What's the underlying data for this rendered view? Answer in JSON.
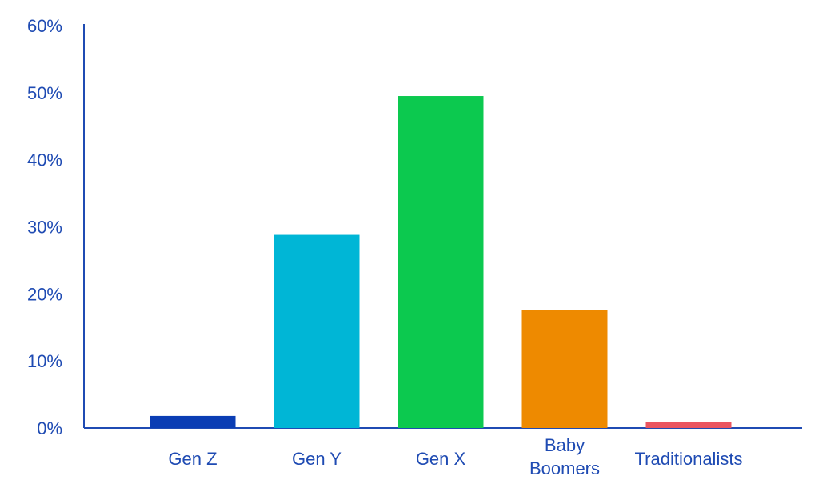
{
  "chart_data": {
    "type": "bar",
    "categories": [
      "Gen Z",
      "Gen Y",
      "Gen X",
      "Baby Boomers",
      "Traditionalists"
    ],
    "category_label_lines": [
      [
        "Gen Z"
      ],
      [
        "Gen Y"
      ],
      [
        "Gen X"
      ],
      [
        "Baby",
        "Boomers"
      ],
      [
        "Traditionalists"
      ]
    ],
    "values": [
      1.8,
      28.8,
      49.5,
      17.6,
      0.9
    ],
    "colors": [
      "#0a3db4",
      "#00b6d6",
      "#0cc94f",
      "#ee8a00",
      "#ea5560"
    ],
    "ylim": [
      0,
      60
    ],
    "yticks": [
      0,
      10,
      20,
      30,
      40,
      50,
      60
    ],
    "ytick_labels": [
      "0%",
      "10%",
      "20%",
      "30%",
      "40%",
      "50%",
      "60%"
    ],
    "axis_color": "#1f4bb3",
    "title": "",
    "xlabel": "",
    "ylabel": "",
    "grid": false,
    "legend": "none"
  }
}
